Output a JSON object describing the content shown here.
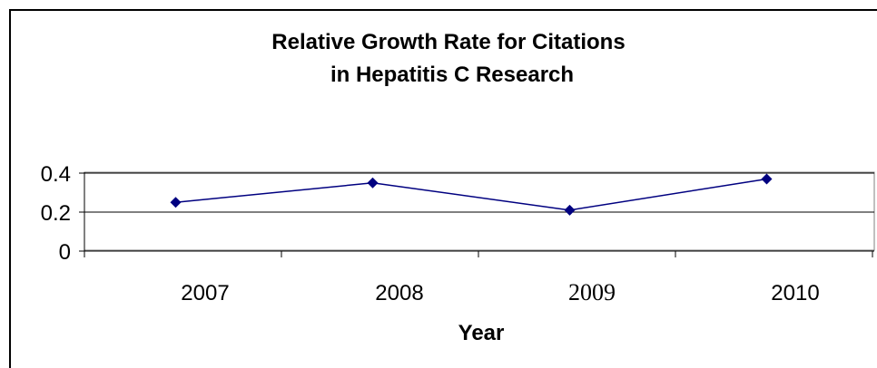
{
  "chart_data": {
    "type": "line",
    "title_lines": [
      "Relative Growth Rate for Citations",
      "in Hepatitis C Research"
    ],
    "xlabel": "Year",
    "ylabel": "",
    "categories": [
      "2007",
      "2008",
      "2009",
      "2010"
    ],
    "series": [
      {
        "values": [
          0.25,
          0.35,
          0.21,
          0.37
        ],
        "color": "#000080"
      }
    ],
    "y_ticks": [
      "0",
      "0.2",
      "0.4"
    ],
    "ylim": [
      0,
      0.45
    ],
    "grid": true,
    "legend": "none"
  }
}
